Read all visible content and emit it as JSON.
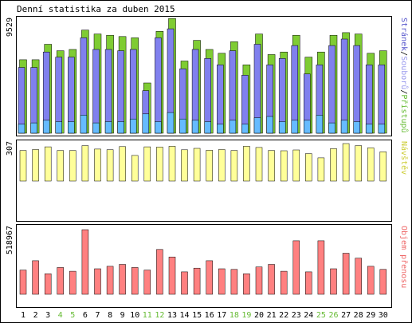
{
  "chart_data": {
    "type": "bar",
    "title": "Denní statistika za duben 2015",
    "categories": [
      "1",
      "2",
      "3",
      "4",
      "5",
      "6",
      "7",
      "8",
      "9",
      "10",
      "11",
      "12",
      "13",
      "14",
      "15",
      "16",
      "17",
      "18",
      "19",
      "20",
      "21",
      "22",
      "23",
      "24",
      "25",
      "26",
      "27",
      "28",
      "29",
      "30"
    ],
    "weekend_days": [
      "4",
      "5",
      "11",
      "12",
      "18",
      "19",
      "25",
      "26"
    ],
    "panels": [
      {
        "id": "top",
        "ymax_label": "9529",
        "ylim": [
          0,
          9529
        ],
        "side_label_parts": [
          {
            "text": "Stránek",
            "color": "#5555cc"
          },
          {
            "text": "/",
            "color": "#000000"
          },
          {
            "text": "Souborů",
            "color": "#9999ee"
          },
          {
            "text": "/",
            "color": "#000000"
          },
          {
            "text": "Přístupů",
            "color": "#66bb33"
          }
        ],
        "series": [
          {
            "name": "Přístupů",
            "color": "#7fcc33",
            "values": [
              5700,
              5700,
              6900,
              6400,
              6500,
              8000,
              7700,
              7600,
              7500,
              7400,
              3900,
              7900,
              8900,
              5600,
              7200,
              6500,
              6200,
              7100,
              5300,
              7700,
              6100,
              6300,
              7600,
              5900,
              6300,
              7600,
              7800,
              7700,
              6200,
              6400
            ]
          },
          {
            "name": "Souborů",
            "color": "#8080ee",
            "values": [
              5100,
              5100,
              6300,
              5900,
              5900,
              7400,
              6500,
              6500,
              6400,
              6500,
              3300,
              7400,
              8100,
              5000,
              6500,
              5800,
              5300,
              6400,
              4500,
              6900,
              5300,
              5800,
              6800,
              4600,
              5300,
              6800,
              7300,
              6800,
              5300,
              5300
            ]
          },
          {
            "name": "Stránek",
            "color": "#66bbff",
            "values": [
              700,
              800,
              1000,
              900,
              900,
              1400,
              800,
              900,
              900,
              1100,
              1500,
              900,
              1600,
              1100,
              1000,
              900,
              700,
              1000,
              700,
              1200,
              1300,
              900,
              1000,
              1000,
              1400,
              800,
              1000,
              900,
              700,
              700
            ]
          }
        ]
      },
      {
        "id": "middle",
        "ymax_label": "307",
        "ylim": [
          0,
          307
        ],
        "side_label_parts": [
          {
            "text": "Návštěv",
            "color": "#cccc33"
          }
        ],
        "series": [
          {
            "name": "Návštěv",
            "color": "#ffff99",
            "values": [
              250,
              258,
              280,
              250,
              250,
              290,
              262,
              257,
              282,
              210,
              280,
              278,
              285,
              256,
              268,
              252,
              258,
              250,
              285,
              275,
              250,
              248,
              255,
              225,
              190,
              265,
              307,
              290,
              272,
              240
            ]
          }
        ]
      },
      {
        "id": "bottom",
        "ymax_label": "518967",
        "ylim": [
          0,
          518967
        ],
        "side_label_parts": [
          {
            "text": "Objem přenosu",
            "color": "#ee6666"
          }
        ],
        "series": [
          {
            "name": "Objem přenosu",
            "color": "#ff8080",
            "values": [
              195000,
              270000,
              165000,
              215000,
              185000,
              518967,
              205000,
              225000,
              240000,
              215000,
              195000,
              360000,
              300000,
              180000,
              210000,
              270000,
              205000,
              200000,
              165000,
              220000,
              240000,
              185000,
              430000,
              180000,
              430000,
              205000,
              330000,
              290000,
              225000,
              200000
            ]
          }
        ]
      }
    ]
  }
}
